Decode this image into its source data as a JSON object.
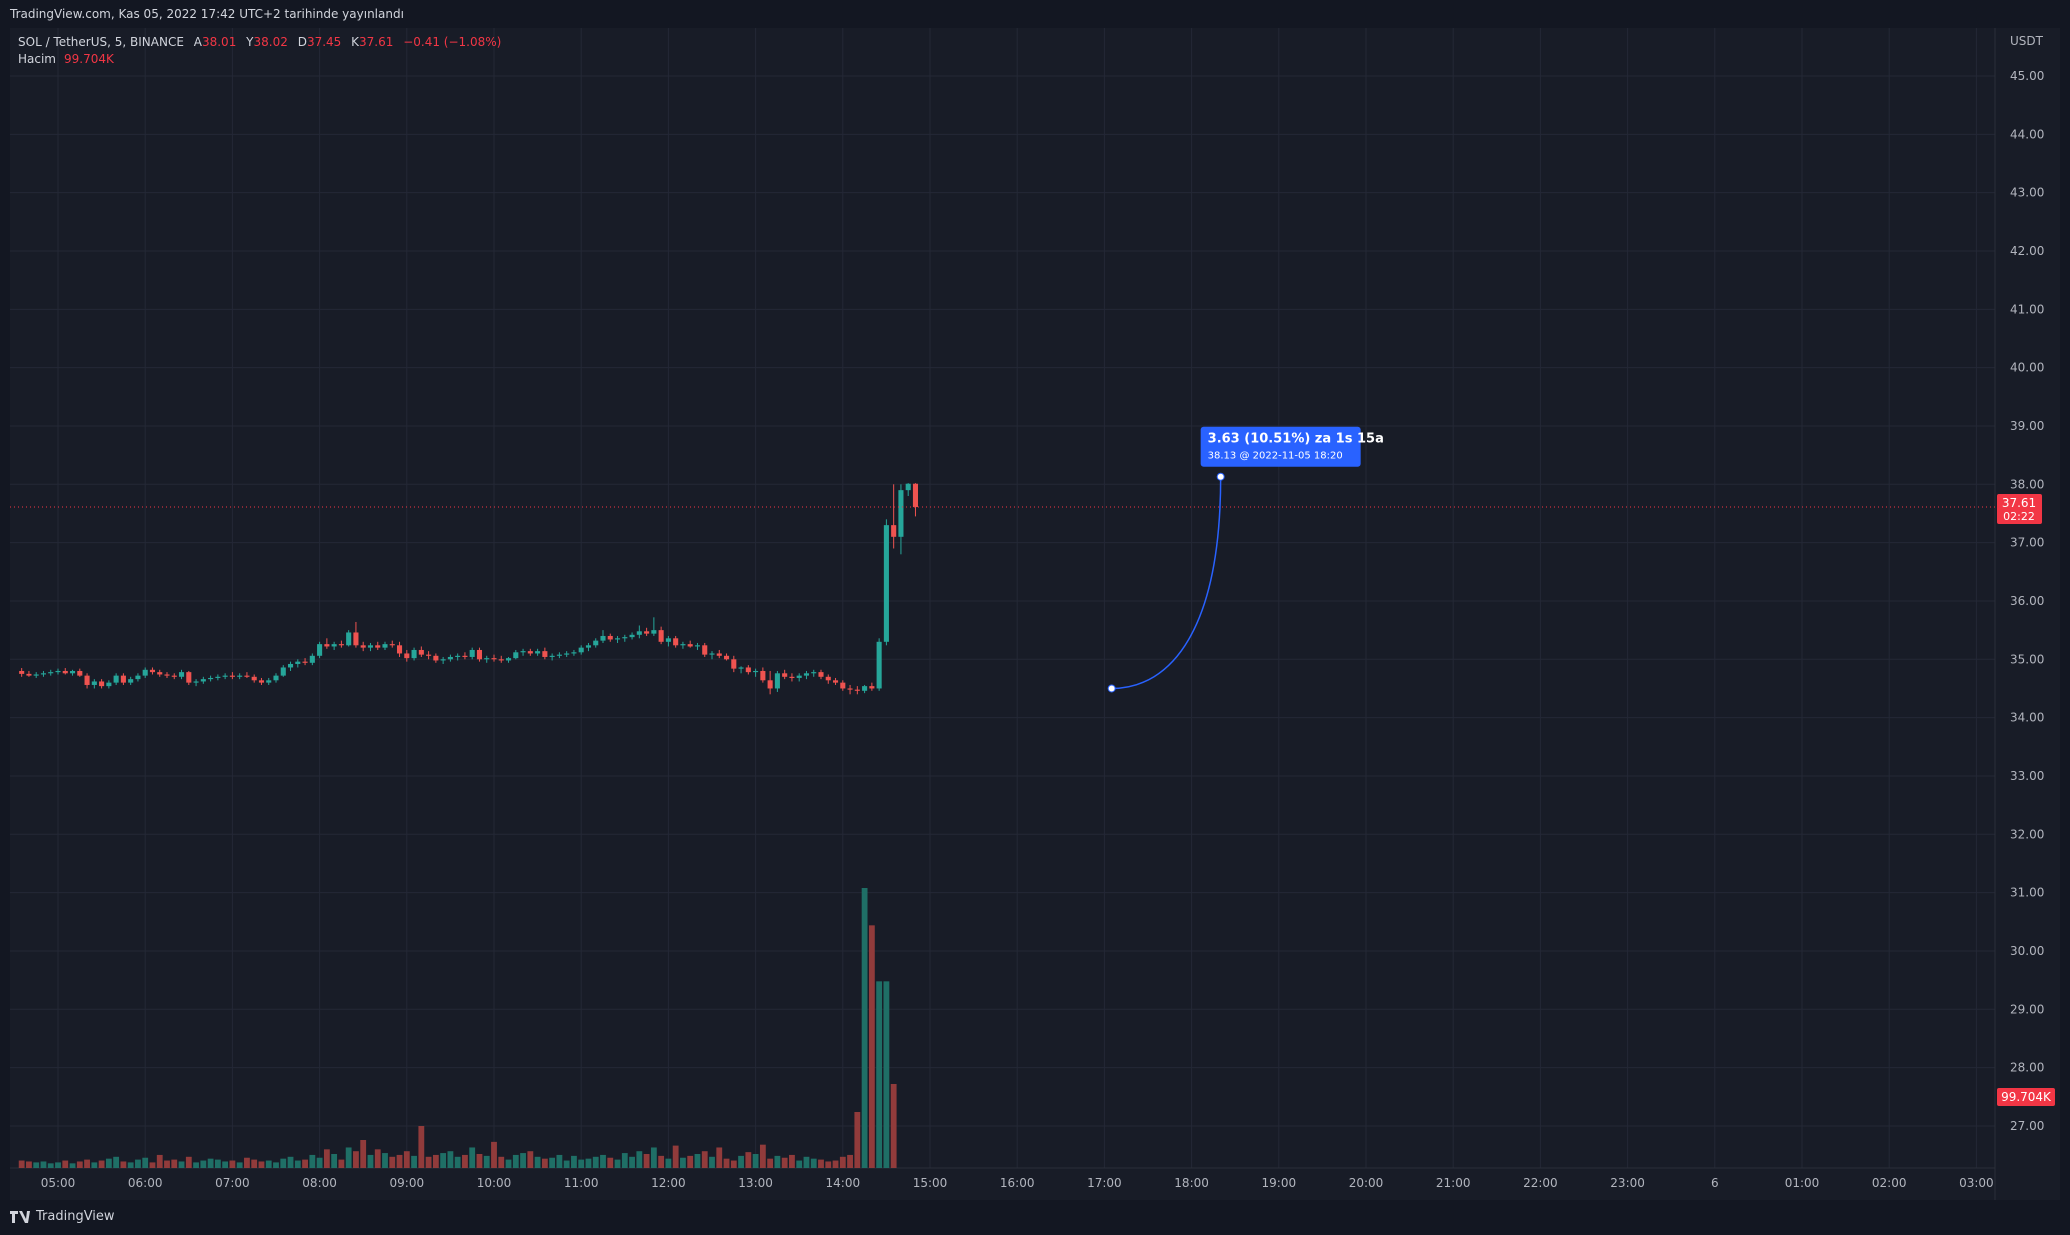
{
  "header": {
    "publisher_line": "TradingView.com, Kas 05, 2022 17:42 UTC+2 tarihinde yayınlandı"
  },
  "legend": {
    "symbol": "SOL / TetherUS, 5, BINANCE",
    "open_label": "A",
    "open_value": "38.01",
    "high_label": "Y",
    "high_value": "38.02",
    "low_label": "D",
    "low_value": "37.45",
    "close_label": "K",
    "close_value": "37.61",
    "change": "−0.41 (−1.08%)",
    "volume_label": "Hacim",
    "volume_value": "99.704K"
  },
  "footer": {
    "brand": "TradingView"
  },
  "colors": {
    "background": "#181c27",
    "up": "#26a69a",
    "down": "#ef5350",
    "up_volume": "#1f6f66",
    "down_volume": "#913b3b",
    "price_line": "#f23645",
    "projection": "#2962ff"
  },
  "chart_data": {
    "type": "candlestick",
    "interval": "5",
    "currency_label": "USDT",
    "y_ticks": [
      "45.00",
      "44.00",
      "43.00",
      "42.00",
      "41.00",
      "40.00",
      "39.00",
      "38.00",
      "37.00",
      "36.00",
      "35.00",
      "34.00",
      "33.00",
      "32.00",
      "31.00",
      "30.00",
      "29.00",
      "28.00",
      "27.00"
    ],
    "x_ticks": [
      "05:00",
      "06:00",
      "07:00",
      "08:00",
      "09:00",
      "10:00",
      "11:00",
      "12:00",
      "13:00",
      "14:00",
      "15:00",
      "16:00",
      "17:00",
      "18:00",
      "19:00",
      "20:00",
      "21:00",
      "22:00",
      "23:00",
      "6",
      "01:00",
      "02:00",
      "03:00"
    ],
    "last_price": {
      "value": 37.61,
      "label": "37.61",
      "countdown": "02:22"
    },
    "last_volume_label": "99.704K",
    "projection": {
      "label": "3.63 (10.51%) za 1s 15a",
      "sublabel": "38.13 @ 2022-11-05  18:20",
      "from": {
        "time": "17:05",
        "price": 34.5
      },
      "to": {
        "time": "18:20",
        "price": 38.13
      }
    },
    "candles": [
      [
        34.8,
        34.85,
        34.7,
        34.75
      ],
      [
        34.75,
        34.8,
        34.7,
        34.72
      ],
      [
        34.72,
        34.78,
        34.68,
        34.74
      ],
      [
        34.74,
        34.8,
        34.7,
        34.76
      ],
      [
        34.76,
        34.82,
        34.72,
        34.78
      ],
      [
        34.78,
        34.84,
        34.74,
        34.8
      ],
      [
        34.8,
        34.85,
        34.74,
        34.76
      ],
      [
        34.76,
        34.82,
        34.72,
        34.8
      ],
      [
        34.8,
        34.84,
        34.7,
        34.72
      ],
      [
        34.72,
        34.76,
        34.5,
        34.56
      ],
      [
        34.56,
        34.66,
        34.5,
        34.62
      ],
      [
        34.62,
        34.66,
        34.5,
        34.54
      ],
      [
        34.54,
        34.64,
        34.5,
        34.6
      ],
      [
        34.6,
        34.76,
        34.56,
        34.72
      ],
      [
        34.72,
        34.76,
        34.56,
        34.6
      ],
      [
        34.6,
        34.7,
        34.56,
        34.66
      ],
      [
        34.66,
        34.76,
        34.62,
        34.72
      ],
      [
        34.72,
        34.86,
        34.68,
        34.82
      ],
      [
        34.82,
        34.86,
        34.74,
        34.78
      ],
      [
        34.78,
        34.82,
        34.7,
        34.74
      ],
      [
        34.74,
        34.78,
        34.68,
        34.72
      ],
      [
        34.72,
        34.76,
        34.66,
        34.7
      ],
      [
        34.7,
        34.82,
        34.66,
        34.78
      ],
      [
        34.78,
        34.8,
        34.56,
        34.6
      ],
      [
        34.6,
        34.66,
        34.54,
        34.62
      ],
      [
        34.62,
        34.7,
        34.58,
        34.66
      ],
      [
        34.66,
        34.72,
        34.62,
        34.68
      ],
      [
        34.68,
        34.74,
        34.64,
        34.7
      ],
      [
        34.7,
        34.76,
        34.66,
        34.72
      ],
      [
        34.72,
        34.78,
        34.66,
        34.7
      ],
      [
        34.7,
        34.76,
        34.66,
        34.72
      ],
      [
        34.72,
        34.78,
        34.68,
        34.7
      ],
      [
        34.7,
        34.74,
        34.6,
        34.64
      ],
      [
        34.64,
        34.68,
        34.56,
        34.6
      ],
      [
        34.6,
        34.68,
        34.56,
        34.64
      ],
      [
        34.64,
        34.76,
        34.6,
        34.72
      ],
      [
        34.72,
        34.9,
        34.7,
        34.86
      ],
      [
        34.86,
        34.96,
        34.8,
        34.92
      ],
      [
        34.92,
        35.0,
        34.86,
        34.96
      ],
      [
        34.96,
        35.02,
        34.9,
        34.94
      ],
      [
        34.94,
        35.1,
        34.9,
        35.06
      ],
      [
        35.06,
        35.3,
        35.02,
        35.26
      ],
      [
        35.26,
        35.36,
        35.18,
        35.22
      ],
      [
        35.22,
        35.3,
        35.16,
        35.26
      ],
      [
        35.26,
        35.32,
        35.2,
        35.24
      ],
      [
        35.24,
        35.5,
        35.22,
        35.46
      ],
      [
        35.46,
        35.64,
        35.2,
        35.24
      ],
      [
        35.24,
        35.3,
        35.14,
        35.2
      ],
      [
        35.2,
        35.28,
        35.14,
        35.24
      ],
      [
        35.24,
        35.3,
        35.16,
        35.2
      ],
      [
        35.2,
        35.3,
        35.16,
        35.26
      ],
      [
        35.26,
        35.32,
        35.2,
        35.24
      ],
      [
        35.24,
        35.3,
        35.04,
        35.1
      ],
      [
        35.1,
        35.16,
        34.96,
        35.02
      ],
      [
        35.02,
        35.2,
        34.98,
        35.16
      ],
      [
        35.16,
        35.22,
        35.04,
        35.08
      ],
      [
        35.08,
        35.14,
        35.0,
        35.06
      ],
      [
        35.06,
        35.1,
        34.94,
        34.98
      ],
      [
        34.98,
        35.04,
        34.92,
        35.0
      ],
      [
        35.0,
        35.08,
        34.96,
        35.04
      ],
      [
        35.04,
        35.1,
        34.98,
        35.06
      ],
      [
        35.06,
        35.12,
        35.0,
        35.04
      ],
      [
        35.04,
        35.2,
        35.0,
        35.16
      ],
      [
        35.16,
        35.2,
        34.96,
        35.0
      ],
      [
        35.0,
        35.06,
        34.94,
        35.02
      ],
      [
        35.02,
        35.08,
        34.96,
        35.0
      ],
      [
        35.0,
        35.06,
        34.94,
        34.98
      ],
      [
        34.98,
        35.04,
        34.94,
        35.02
      ],
      [
        35.02,
        35.16,
        35.0,
        35.12
      ],
      [
        35.12,
        35.18,
        35.06,
        35.14
      ],
      [
        35.14,
        35.18,
        35.06,
        35.1
      ],
      [
        35.1,
        35.18,
        35.06,
        35.14
      ],
      [
        35.14,
        35.2,
        35.0,
        35.04
      ],
      [
        35.04,
        35.1,
        34.98,
        35.06
      ],
      [
        35.06,
        35.12,
        35.02,
        35.08
      ],
      [
        35.08,
        35.14,
        35.04,
        35.1
      ],
      [
        35.1,
        35.16,
        35.06,
        35.12
      ],
      [
        35.12,
        35.24,
        35.08,
        35.2
      ],
      [
        35.2,
        35.28,
        35.14,
        35.24
      ],
      [
        35.24,
        35.36,
        35.2,
        35.32
      ],
      [
        35.32,
        35.5,
        35.28,
        35.4
      ],
      [
        35.4,
        35.44,
        35.3,
        35.34
      ],
      [
        35.34,
        35.4,
        35.28,
        35.36
      ],
      [
        35.36,
        35.42,
        35.3,
        35.38
      ],
      [
        35.38,
        35.46,
        35.34,
        35.42
      ],
      [
        35.42,
        35.58,
        35.36,
        35.48
      ],
      [
        35.48,
        35.54,
        35.4,
        35.44
      ],
      [
        35.44,
        35.72,
        35.4,
        35.5
      ],
      [
        35.5,
        35.56,
        35.26,
        35.3
      ],
      [
        35.3,
        35.4,
        35.22,
        35.36
      ],
      [
        35.36,
        35.4,
        35.2,
        35.24
      ],
      [
        35.24,
        35.3,
        35.18,
        35.26
      ],
      [
        35.26,
        35.32,
        35.2,
        35.22
      ],
      [
        35.22,
        35.28,
        35.16,
        35.24
      ],
      [
        35.24,
        35.28,
        35.04,
        35.08
      ],
      [
        35.08,
        35.14,
        35.0,
        35.1
      ],
      [
        35.1,
        35.16,
        35.02,
        35.06
      ],
      [
        35.06,
        35.1,
        34.98,
        35.0
      ],
      [
        35.0,
        35.06,
        34.78,
        34.84
      ],
      [
        34.84,
        34.88,
        34.76,
        34.86
      ],
      [
        34.86,
        34.9,
        34.74,
        34.78
      ],
      [
        34.78,
        34.84,
        34.7,
        34.8
      ],
      [
        34.8,
        34.86,
        34.6,
        34.64
      ],
      [
        34.64,
        34.8,
        34.4,
        34.5
      ],
      [
        34.5,
        34.8,
        34.44,
        34.76
      ],
      [
        34.76,
        34.82,
        34.66,
        34.7
      ],
      [
        34.7,
        34.76,
        34.62,
        34.68
      ],
      [
        34.68,
        34.76,
        34.62,
        34.72
      ],
      [
        34.72,
        34.8,
        34.66,
        34.76
      ],
      [
        34.76,
        34.82,
        34.7,
        34.78
      ],
      [
        34.78,
        34.82,
        34.66,
        34.7
      ],
      [
        34.7,
        34.74,
        34.58,
        34.64
      ],
      [
        34.64,
        34.68,
        34.56,
        34.6
      ],
      [
        34.6,
        34.64,
        34.46,
        34.5
      ],
      [
        34.5,
        34.56,
        34.4,
        34.48
      ],
      [
        34.48,
        34.54,
        34.4,
        34.46
      ],
      [
        34.46,
        34.56,
        34.42,
        34.54
      ],
      [
        34.54,
        34.6,
        34.46,
        34.5
      ],
      [
        34.5,
        35.36,
        34.46,
        35.3
      ],
      [
        35.3,
        37.4,
        35.24,
        37.3
      ],
      [
        37.3,
        38.0,
        36.9,
        37.1
      ],
      [
        37.1,
        38.0,
        36.8,
        37.9
      ],
      [
        37.9,
        38.02,
        37.8,
        38.01
      ],
      [
        38.01,
        38.02,
        37.45,
        37.61
      ]
    ],
    "volumes": [
      8,
      7,
      6,
      7,
      5,
      6,
      8,
      5,
      7,
      9,
      6,
      8,
      10,
      12,
      7,
      6,
      9,
      11,
      6,
      14,
      8,
      9,
      7,
      12,
      6,
      8,
      10,
      9,
      7,
      8,
      6,
      11,
      9,
      7,
      8,
      6,
      10,
      12,
      8,
      9,
      14,
      11,
      20,
      15,
      9,
      22,
      18,
      30,
      14,
      20,
      16,
      12,
      14,
      18,
      13,
      45,
      12,
      14,
      16,
      18,
      12,
      14,
      22,
      15,
      13,
      28,
      12,
      9,
      14,
      16,
      18,
      12,
      10,
      11,
      14,
      8,
      13,
      9,
      10,
      12,
      14,
      11,
      9,
      16,
      12,
      18,
      15,
      22,
      13,
      10,
      24,
      11,
      13,
      15,
      18,
      12,
      22,
      10,
      8,
      13,
      17,
      15,
      25,
      10,
      13,
      11,
      14,
      8,
      12,
      10,
      9,
      7,
      8,
      12,
      14,
      60,
      300,
      260,
      200,
      200,
      90
    ]
  }
}
